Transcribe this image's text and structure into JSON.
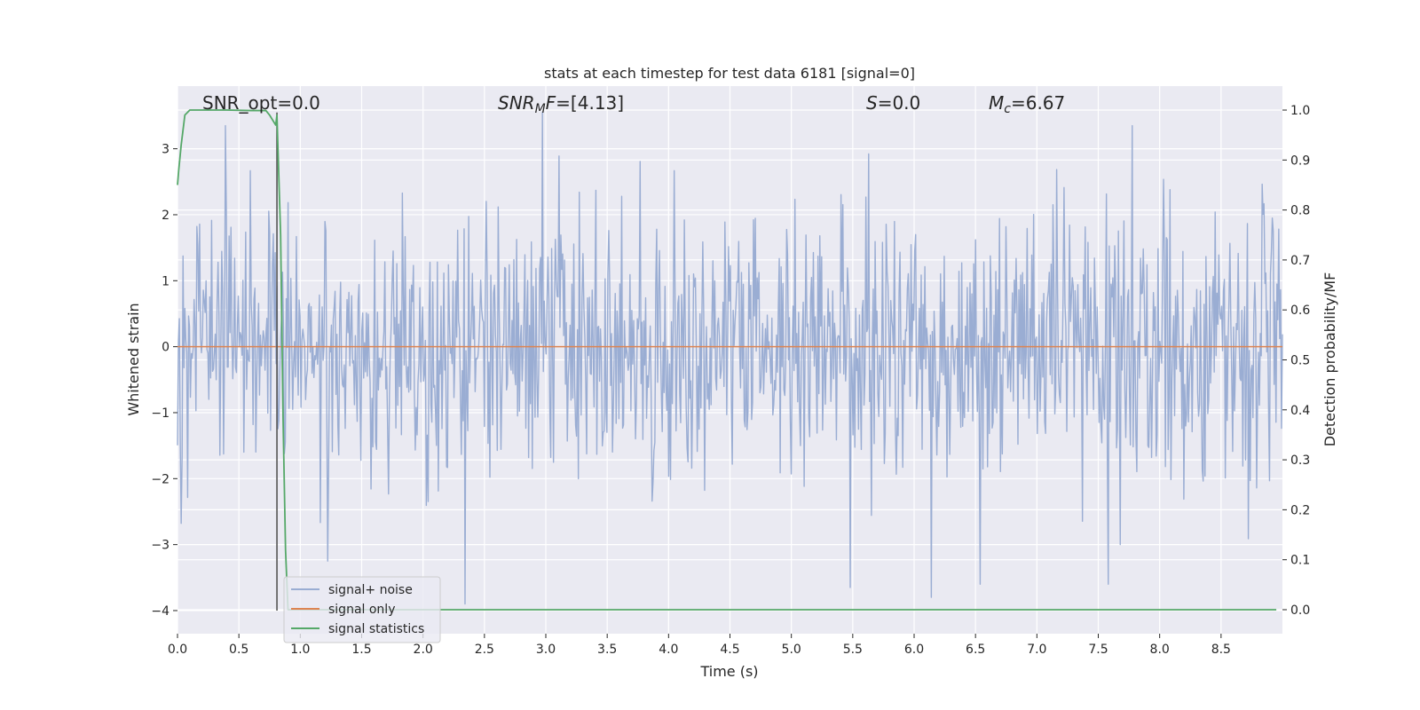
{
  "chart_data": {
    "type": "line",
    "title": "stats at each timestep for test data 6181 [signal=0]",
    "xlabel": "Time (s)",
    "ylabel": "Whitened strain",
    "y2label": "Detection probability/MF",
    "xlim": [
      0,
      9.0
    ],
    "ylim": [
      -4.35,
      3.95
    ],
    "y2lim": [
      -0.048,
      1.048
    ],
    "x_ticks": [
      "0.0",
      "0.5",
      "1.0",
      "1.5",
      "2.0",
      "2.5",
      "3.0",
      "3.5",
      "4.0",
      "4.5",
      "5.0",
      "5.5",
      "6.0",
      "6.5",
      "7.0",
      "7.5",
      "8.0",
      "8.5"
    ],
    "x_tick_values": [
      0,
      0.5,
      1.0,
      1.5,
      2.0,
      2.5,
      3.0,
      3.5,
      4.0,
      4.5,
      5.0,
      5.5,
      6.0,
      6.5,
      7.0,
      7.5,
      8.0,
      8.5
    ],
    "y_ticks": [
      "3",
      "2",
      "1",
      "0",
      "−1",
      "−2",
      "−3",
      "−4"
    ],
    "y_tick_values": [
      3,
      2,
      1,
      0,
      -1,
      -2,
      -3,
      -4
    ],
    "y2_ticks": [
      "1.0",
      "0.9",
      "0.8",
      "0.7",
      "0.6",
      "0.5",
      "0.4",
      "0.3",
      "0.2",
      "0.1",
      "0.0"
    ],
    "y2_tick_values": [
      1.0,
      0.9,
      0.8,
      0.7,
      0.6,
      0.5,
      0.4,
      0.3,
      0.2,
      0.1,
      0.0
    ],
    "grid": true,
    "legend_placement": "lower-left",
    "annotations": [
      {
        "text": "SNR_opt=0.0",
        "x": 0.19,
        "y": 3.6
      },
      {
        "text": "SNR_MF=[4.13]",
        "x": 2.6,
        "y": 3.6
      },
      {
        "text": "S=0.0",
        "x": 5.6,
        "y": 3.6
      },
      {
        "text": "M_c=6.67",
        "x": 6.6,
        "y": 3.6
      }
    ],
    "series": [
      {
        "name": "signal+ noise",
        "axis": "left",
        "color": "#9aadd3",
        "description_values": "Gaussian-like whitened noise, mostly within ±2, extremes up to about 3.5 and down to about -3.9",
        "seed": 6181,
        "n_points": 1200,
        "sigma": 1.0,
        "extremes": [
          {
            "x": 2.97,
            "y": 3.55
          },
          {
            "x": 0.39,
            "y": 3.35
          },
          {
            "x": 7.78,
            "y": 3.35
          },
          {
            "x": 2.34,
            "y": -3.9
          },
          {
            "x": 6.14,
            "y": -3.8
          },
          {
            "x": 5.48,
            "y": -3.65
          },
          {
            "x": 7.58,
            "y": -3.6
          },
          {
            "x": 6.54,
            "y": -3.6
          },
          {
            "x": 1.22,
            "y": -3.25
          }
        ]
      },
      {
        "name": "signal only",
        "axis": "left",
        "color": "#dd8452",
        "x": [
          0,
          9.0
        ],
        "y": [
          0,
          0
        ]
      },
      {
        "name": "signal statistics",
        "axis": "right",
        "color": "#55a868",
        "x": [
          0.0,
          0.01,
          0.03,
          0.06,
          0.1,
          0.2,
          0.4,
          0.6,
          0.72,
          0.75,
          0.8,
          0.81,
          0.84,
          0.86,
          0.88,
          0.9,
          1.0,
          2.0,
          4.0,
          6.0,
          8.0,
          8.95
        ],
        "y": [
          0.85,
          0.88,
          0.93,
          0.99,
          1.0,
          1.0,
          1.0,
          0.999,
          0.999,
          0.99,
          0.97,
          0.99,
          0.75,
          0.38,
          0.12,
          0.0,
          0.0,
          0.0,
          0.0,
          0.0,
          0.0,
          0.0
        ]
      }
    ],
    "vertical_line": {
      "x": 0.81,
      "color": "#555555"
    }
  }
}
